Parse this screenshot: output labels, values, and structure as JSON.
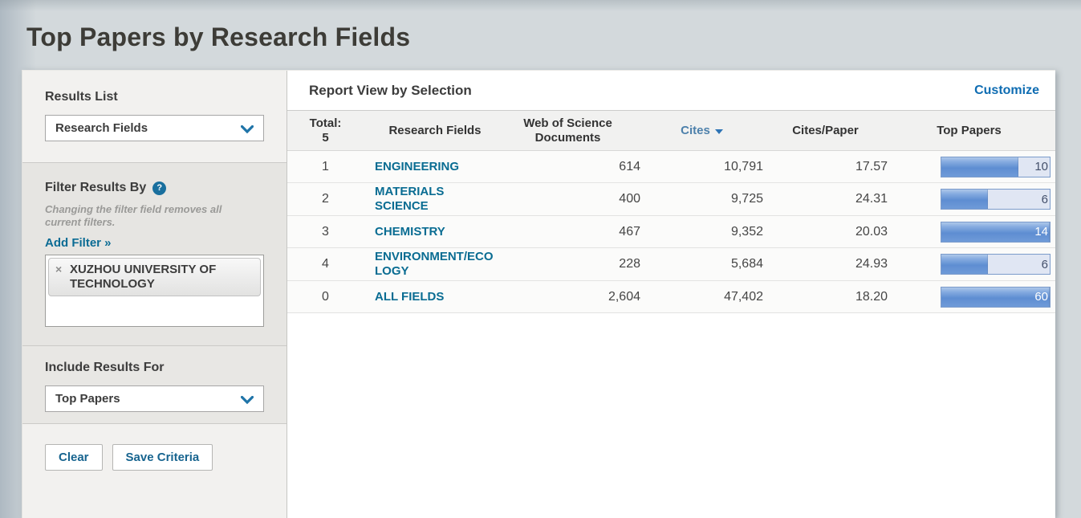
{
  "page": {
    "title": "Top Papers by Research Fields"
  },
  "sidebar": {
    "results_list": {
      "label": "Results List",
      "selected": "Research Fields"
    },
    "filter": {
      "label": "Filter Results By",
      "help_icon": "?",
      "note": "Changing the filter field removes all current filters.",
      "add_filter_label": "Add Filter »",
      "tags": [
        {
          "remove_icon": "×",
          "label": "XUZHOU UNIVERSITY OF TECHNOLOGY"
        }
      ]
    },
    "include_results": {
      "label": "Include Results For",
      "selected": "Top Papers"
    },
    "actions": {
      "clear_label": "Clear",
      "save_label": "Save Criteria"
    }
  },
  "report": {
    "title": "Report View by Selection",
    "customize_label": "Customize",
    "table": {
      "headers": {
        "total_line1": "Total:",
        "total_line2": "5",
        "fields": "Research Fields",
        "docs_line1": "Web of Science",
        "docs_line2": "Documents",
        "cites": "Cites",
        "cites_per_paper": "Cites/Paper",
        "top_papers": "Top Papers"
      },
      "rows": [
        {
          "rank": "1",
          "field": "ENGINEERING",
          "documents": "614",
          "cites": "10,791",
          "cites_per_paper": "17.57",
          "top_papers": "10",
          "bar_pct": 71
        },
        {
          "rank": "2",
          "field": "MATERIALS SCIENCE",
          "documents": "400",
          "cites": "9,725",
          "cites_per_paper": "24.31",
          "top_papers": "6",
          "bar_pct": 43
        },
        {
          "rank": "3",
          "field": "CHEMISTRY",
          "documents": "467",
          "cites": "9,352",
          "cites_per_paper": "20.03",
          "top_papers": "14",
          "bar_pct": 100
        },
        {
          "rank": "4",
          "field": "ENVIRONMENT/ECOLOGY",
          "documents": "228",
          "cites": "5,684",
          "cites_per_paper": "24.93",
          "top_papers": "6",
          "bar_pct": 43
        },
        {
          "rank": "0",
          "field": "ALL FIELDS",
          "documents": "2,604",
          "cites": "47,402",
          "cites_per_paper": "18.20",
          "top_papers": "60",
          "bar_pct": 100
        }
      ]
    }
  },
  "colors": {
    "field_link": "#096c92",
    "customize_link": "#0e6cb2",
    "cites_header": "#4d80ab",
    "bar_fill_mid": "#5e8dd2",
    "bar_track": "#e0e6f3",
    "bar_border": "#7b9bcb",
    "page_background": "#d3d9dc",
    "sidebar_light": "#f2f1ef",
    "sidebar_dark": "#e6e5e2"
  }
}
